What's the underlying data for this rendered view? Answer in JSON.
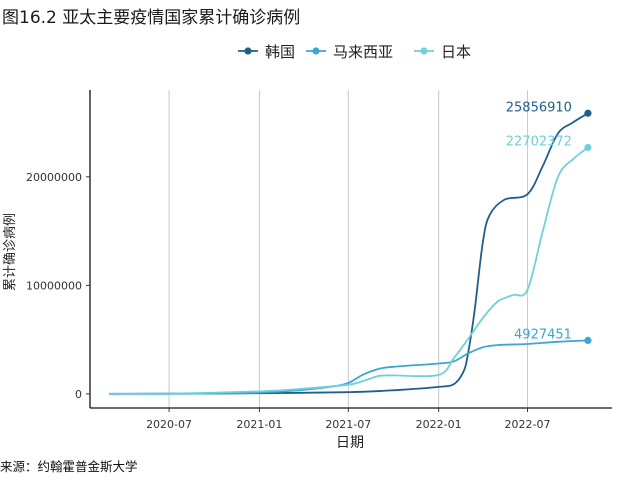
{
  "header": {
    "title": "图16.2 亚太主要疫情国家累计确诊病例"
  },
  "footer": {
    "source": "来源：约翰霍普金斯大学"
  },
  "chart_data": {
    "type": "line",
    "title": "图16.2 亚太主要疫情国家累计确诊病例",
    "xlabel": "日期",
    "ylabel": "累计确诊病例",
    "legend_position": "top",
    "grid": {
      "vertical": true,
      "horizontal": false
    },
    "x_range": [
      "2020-01-22",
      "2022-12-20"
    ],
    "y_range": [
      -1300000,
      28000000
    ],
    "x_ticks": [
      "2020-07",
      "2021-01",
      "2021-07",
      "2022-01",
      "2022-07"
    ],
    "y_ticks": [
      0,
      10000000,
      20000000
    ],
    "series": [
      {
        "name": "韩国",
        "color": "#1f5f8b",
        "end_label": "25856910",
        "points": [
          [
            "2020-03-01",
            4000
          ],
          [
            "2020-07-01",
            13000
          ],
          [
            "2021-01-01",
            62000
          ],
          [
            "2021-07-01",
            160000
          ],
          [
            "2021-10-01",
            330000
          ],
          [
            "2022-01-01",
            640000
          ],
          [
            "2022-02-01",
            900000
          ],
          [
            "2022-02-20",
            2000000
          ],
          [
            "2022-03-01",
            3500000
          ],
          [
            "2022-03-15",
            7600000
          ],
          [
            "2022-04-01",
            14000000
          ],
          [
            "2022-04-15",
            16500000
          ],
          [
            "2022-05-15",
            17900000
          ],
          [
            "2022-07-01",
            18400000
          ],
          [
            "2022-08-01",
            21000000
          ],
          [
            "2022-09-01",
            24000000
          ],
          [
            "2022-10-01",
            25000000
          ],
          [
            "2022-11-01",
            25856910
          ]
        ]
      },
      {
        "name": "马来西亚",
        "color": "#3ba7d1",
        "end_label": "4927451",
        "points": [
          [
            "2020-03-01",
            2000
          ],
          [
            "2020-07-01",
            9000
          ],
          [
            "2021-01-01",
            120000
          ],
          [
            "2021-04-01",
            380000
          ],
          [
            "2021-06-01",
            700000
          ],
          [
            "2021-07-01",
            1000000
          ],
          [
            "2021-08-01",
            1800000
          ],
          [
            "2021-09-01",
            2300000
          ],
          [
            "2021-10-01",
            2500000
          ],
          [
            "2022-01-01",
            2800000
          ],
          [
            "2022-02-01",
            3000000
          ],
          [
            "2022-03-01",
            3700000
          ],
          [
            "2022-04-01",
            4300000
          ],
          [
            "2022-05-01",
            4500000
          ],
          [
            "2022-07-01",
            4600000
          ],
          [
            "2022-09-01",
            4800000
          ],
          [
            "2022-11-01",
            4927451
          ]
        ]
      },
      {
        "name": "日本",
        "color": "#6fcfdb",
        "end_label": "22702372",
        "points": [
          [
            "2020-03-01",
            1000
          ],
          [
            "2020-07-01",
            20000
          ],
          [
            "2021-01-01",
            230000
          ],
          [
            "2021-04-01",
            480000
          ],
          [
            "2021-07-01",
            850000
          ],
          [
            "2021-08-01",
            1200000
          ],
          [
            "2021-09-01",
            1650000
          ],
          [
            "2021-10-01",
            1700000
          ],
          [
            "2022-01-01",
            1750000
          ],
          [
            "2022-02-01",
            3300000
          ],
          [
            "2022-03-01",
            5000000
          ],
          [
            "2022-04-01",
            7000000
          ],
          [
            "2022-05-01",
            8500000
          ],
          [
            "2022-06-01",
            9100000
          ],
          [
            "2022-07-01",
            9600000
          ],
          [
            "2022-08-01",
            15000000
          ],
          [
            "2022-09-01",
            20000000
          ],
          [
            "2022-10-01",
            21600000
          ],
          [
            "2022-11-01",
            22702372
          ]
        ]
      }
    ]
  }
}
